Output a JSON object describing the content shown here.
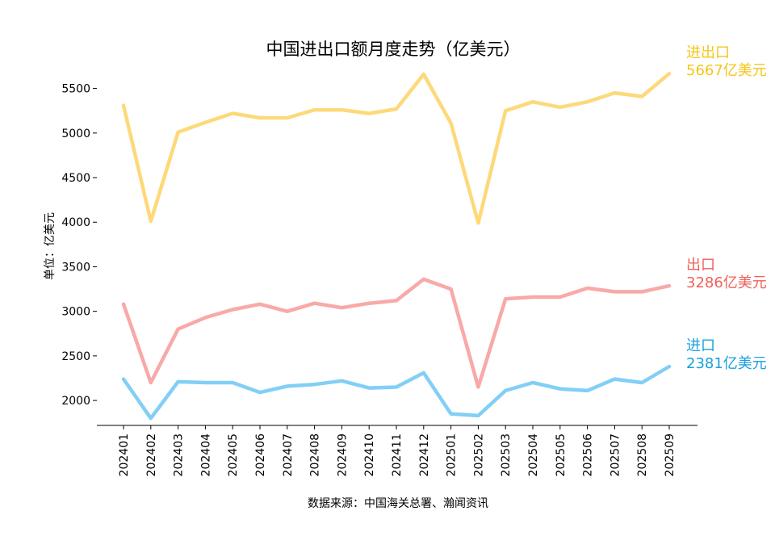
{
  "chart_data": {
    "type": "line",
    "title": "中国进出口额月度走势（亿美元）",
    "ylabel": "单位：亿美元",
    "xlabel": "",
    "source_note": "数据来源：中国海关总署、瀚闻资讯",
    "ylim": [
      1720,
      5750
    ],
    "yticks": [
      2000,
      2500,
      3000,
      3500,
      4000,
      4500,
      5000,
      5500
    ],
    "grid": false,
    "categories": [
      "202401",
      "202402",
      "202403",
      "202404",
      "202405",
      "202406",
      "202407",
      "202408",
      "202409",
      "202410",
      "202411",
      "202412",
      "202501",
      "202502",
      "202503",
      "202504",
      "202505",
      "202506",
      "202507",
      "202508",
      "202509"
    ],
    "series": [
      {
        "name": "进出口",
        "color": "#fdd97a",
        "end_label_name": "进出口",
        "end_label_value": "5667亿美元",
        "label_color": "#f5c518",
        "values": [
          5310,
          4010,
          5010,
          5120,
          5220,
          5170,
          5170,
          5260,
          5260,
          5220,
          5270,
          5660,
          5110,
          3990,
          5250,
          5350,
          5290,
          5350,
          5450,
          5410,
          5667
        ]
      },
      {
        "name": "出口",
        "color": "#f8a9a8",
        "end_label_name": "出口",
        "end_label_value": "3286亿美元",
        "label_color": "#f0605a",
        "values": [
          3080,
          2200,
          2800,
          2930,
          3020,
          3080,
          3000,
          3090,
          3040,
          3090,
          3120,
          3360,
          3250,
          2150,
          3140,
          3160,
          3160,
          3260,
          3220,
          3220,
          3286
        ]
      },
      {
        "name": "进口",
        "color": "#82cff6",
        "end_label_name": "进口",
        "end_label_value": "2381亿美元",
        "label_color": "#1aa0e0",
        "values": [
          2240,
          1800,
          2210,
          2200,
          2200,
          2090,
          2160,
          2180,
          2220,
          2140,
          2150,
          2310,
          1850,
          1830,
          2110,
          2200,
          2130,
          2110,
          2240,
          2200,
          2381
        ]
      }
    ]
  }
}
